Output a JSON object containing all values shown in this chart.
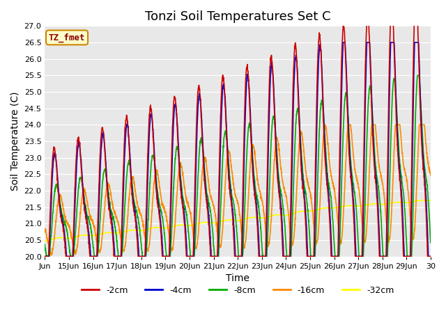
{
  "title": "Tonzi Soil Temperatures Set C",
  "xlabel": "Time",
  "ylabel": "Soil Temperature (C)",
  "ylim": [
    20.0,
    27.0
  ],
  "yticks": [
    20.0,
    20.5,
    21.0,
    21.5,
    22.0,
    22.5,
    23.0,
    23.5,
    24.0,
    24.5,
    25.0,
    25.5,
    26.0,
    26.5,
    27.0
  ],
  "xtick_labels": [
    "Jun",
    "15Jun",
    "16Jun",
    "17Jun",
    "18Jun",
    "19Jun",
    "20Jun",
    "21Jun",
    "22Jun",
    "23Jun",
    "24Jun",
    "25Jun",
    "26Jun",
    "27Jun",
    "28Jun",
    "29Jun",
    "30"
  ],
  "colors": {
    "-2cm": "#cc0000",
    "-4cm": "#0000cc",
    "-8cm": "#00aa00",
    "-16cm": "#ff8800",
    "-32cm": "#ffff00"
  },
  "legend_label": "TZ_fmet",
  "legend_box_color": "#ffffcc",
  "legend_box_edge": "#cc8800",
  "background_color": "#e8e8e8",
  "line_width": 1.2,
  "title_fontsize": 13,
  "label_fontsize": 10
}
